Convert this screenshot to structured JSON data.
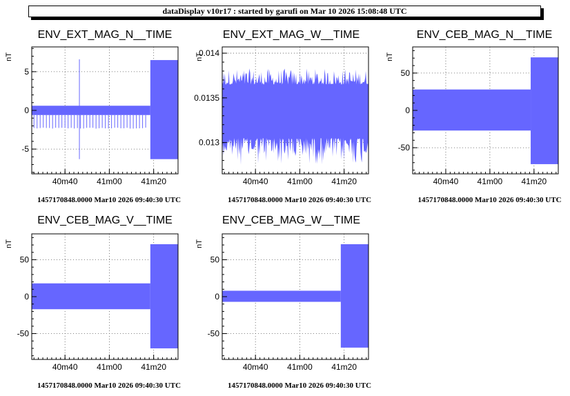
{
  "header": {
    "text": "dataDisplay v10r17 : started by garufi on Mar 10 2026 15:08:48 UTC"
  },
  "colors": {
    "series": "#6666ff",
    "axis": "#000000",
    "grid": "#555555",
    "background": "#ffffff"
  },
  "chart_data": [
    {
      "type": "line",
      "title": "ENV_EXT_MAG_N__TIME",
      "ylabel": "nT",
      "xlabel": "",
      "footer": "1457170848.0000 Mar10 2026 09:40:30 UTC",
      "grid": true,
      "xlim": [
        2425,
        2491
      ],
      "ylim": [
        -8.2,
        8.2
      ],
      "x_ticks": [
        {
          "v": 2440,
          "label": "40m40"
        },
        {
          "v": 2460,
          "label": "41m00"
        },
        {
          "v": 2480,
          "label": "41m20"
        }
      ],
      "y_ticks": [
        {
          "v": 5,
          "label": "5"
        },
        {
          "v": 0,
          "label": "0"
        },
        {
          "v": -5,
          "label": "-5"
        }
      ],
      "series": [
        {
          "segments": [
            {
              "x": [
                2425,
                2478.5
              ],
              "max": 0.6,
              "min": -0.6
            },
            {
              "x": [
                2478.5,
                2491
              ],
              "max": 6.5,
              "min": -6.3
            }
          ],
          "dips": {
            "x_from": 2426,
            "x_to": 2477.5,
            "every": 1.4,
            "min": -2.3
          },
          "spikes": [
            {
              "x": 2446.5,
              "max": 6.6,
              "min": -6.3
            }
          ]
        }
      ]
    },
    {
      "type": "line",
      "title": "ENV_EXT_MAG_W__TIME",
      "ylabel": "nT",
      "xlabel": "",
      "footer": "1457170848.0000 Mar10 2026 09:40:30 UTC",
      "grid": true,
      "xlim": [
        2425,
        2491
      ],
      "ylim": [
        0.01265,
        0.01407
      ],
      "x_ticks": [
        {
          "v": 2440,
          "label": "40m40"
        },
        {
          "v": 2460,
          "label": "41m00"
        },
        {
          "v": 2480,
          "label": "41m20"
        }
      ],
      "y_ticks": [
        {
          "v": 0.014,
          "label": "0.014"
        },
        {
          "v": 0.0135,
          "label": "0.0135"
        },
        {
          "v": 0.013,
          "label": "0.013"
        }
      ],
      "series": [
        {
          "segments": [
            {
              "x": [
                2425,
                2491
              ],
              "max": 0.01365,
              "min": 0.01305
            }
          ],
          "noise": {
            "max_peak": 0.01383,
            "min_peak": 0.01275
          }
        }
      ]
    },
    {
      "type": "line",
      "title": "ENV_CEB_MAG_N__TIME",
      "ylabel": "nT",
      "xlabel": "",
      "footer": "1457170848.0000 Mar10 2026 09:40:30 UTC",
      "grid": true,
      "xlim": [
        2425,
        2491
      ],
      "ylim": [
        -85,
        85
      ],
      "x_ticks": [
        {
          "v": 2440,
          "label": "40m40"
        },
        {
          "v": 2460,
          "label": "41m00"
        },
        {
          "v": 2480,
          "label": "41m20"
        }
      ],
      "y_ticks": [
        {
          "v": 50,
          "label": "50"
        },
        {
          "v": 0,
          "label": "0"
        },
        {
          "v": -50,
          "label": "-50"
        }
      ],
      "series": [
        {
          "segments": [
            {
              "x": [
                2425,
                2478.5
              ],
              "max": 28,
              "min": -27
            },
            {
              "x": [
                2478.5,
                2491
              ],
              "max": 71,
              "min": -72
            }
          ]
        }
      ]
    },
    {
      "type": "line",
      "title": "ENV_CEB_MAG_V__TIME",
      "ylabel": "nT",
      "xlabel": "",
      "footer": "1457170848.0000 Mar10 2026 09:40:30 UTC",
      "grid": true,
      "xlim": [
        2425,
        2491
      ],
      "ylim": [
        -85,
        85
      ],
      "x_ticks": [
        {
          "v": 2440,
          "label": "40m40"
        },
        {
          "v": 2460,
          "label": "41m00"
        },
        {
          "v": 2480,
          "label": "41m20"
        }
      ],
      "y_ticks": [
        {
          "v": 50,
          "label": "50"
        },
        {
          "v": 0,
          "label": "0"
        },
        {
          "v": -50,
          "label": "-50"
        }
      ],
      "series": [
        {
          "segments": [
            {
              "x": [
                2425,
                2478.5
              ],
              "max": 18,
              "min": -17
            },
            {
              "x": [
                2478.5,
                2491
              ],
              "max": 71,
              "min": -70
            }
          ]
        }
      ]
    },
    {
      "type": "line",
      "title": "ENV_CEB_MAG_W__TIME",
      "ylabel": "nT",
      "xlabel": "",
      "footer": "1457170848.0000 Mar10 2026 09:40:30 UTC",
      "grid": true,
      "xlim": [
        2425,
        2491
      ],
      "ylim": [
        -85,
        85
      ],
      "x_ticks": [
        {
          "v": 2440,
          "label": "40m40"
        },
        {
          "v": 2460,
          "label": "41m00"
        },
        {
          "v": 2480,
          "label": "41m20"
        }
      ],
      "y_ticks": [
        {
          "v": 50,
          "label": "50"
        },
        {
          "v": 0,
          "label": "0"
        },
        {
          "v": -50,
          "label": "-50"
        }
      ],
      "series": [
        {
          "segments": [
            {
              "x": [
                2425,
                2478.5
              ],
              "max": 8,
              "min": -7
            },
            {
              "x": [
                2478.5,
                2491
              ],
              "max": 71,
              "min": -69
            }
          ]
        }
      ]
    }
  ]
}
